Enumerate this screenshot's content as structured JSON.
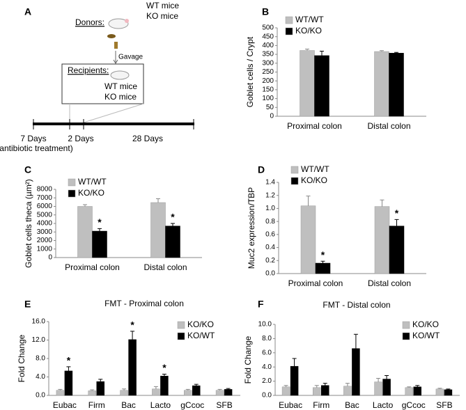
{
  "panel_a": {
    "panel_label": "A",
    "donors": "Donors:",
    "donor_groups": [
      "WT mice",
      "KO mice"
    ],
    "gavage": "Gavage",
    "recipients": "Recipients:",
    "recipient_groups": [
      "WT mice",
      "KO mice"
    ],
    "timeline": [
      "7 Days",
      "2 Days",
      "28 Days"
    ],
    "timeline_note": "(antibiotic treatment)"
  },
  "chart_data": [
    {
      "type": "bar",
      "panel_label": "B",
      "y_label": "Goblet cells / Crypt",
      "categories": [
        "Proximal colon",
        "Distal colon"
      ],
      "ylim": [
        0,
        500
      ],
      "yticks": [
        0,
        50,
        100,
        150,
        200,
        250,
        300,
        350,
        400,
        450,
        500
      ],
      "series": [
        {
          "name": "WT/WT",
          "color": "#bfbfbf",
          "values": [
            372,
            366
          ],
          "errors": [
            8,
            5
          ],
          "markers": [
            null,
            null
          ]
        },
        {
          "name": "KO/KO",
          "color": "#000000",
          "values": [
            343,
            357
          ],
          "errors": [
            25,
            4
          ],
          "markers": [
            null,
            null
          ]
        }
      ]
    },
    {
      "type": "bar",
      "panel_label": "C",
      "y_label": "Goblet cells theca (µm²)",
      "categories": [
        "Proximal colon",
        "Distal colon"
      ],
      "ylim": [
        0,
        8000
      ],
      "yticks": [
        0,
        1000,
        2000,
        3000,
        4000,
        5000,
        6000,
        7000,
        8000
      ],
      "series": [
        {
          "name": "WT/WT",
          "color": "#bfbfbf",
          "values": [
            6000,
            6450
          ],
          "errors": [
            200,
            450
          ],
          "markers": [
            null,
            null
          ]
        },
        {
          "name": "KO/KO",
          "color": "#000000",
          "values": [
            3100,
            3700
          ],
          "errors": [
            300,
            300
          ],
          "markers": [
            "*",
            "*"
          ]
        }
      ]
    },
    {
      "type": "bar",
      "panel_label": "D",
      "y_label": "Muc2 expression/TBP",
      "categories": [
        "Proximal colon",
        "Distal colon"
      ],
      "ylim": [
        0,
        1.4
      ],
      "yticks": [
        {
          "value": 0,
          "label": "0.0"
        },
        0.2,
        0.4,
        0.6,
        0.8,
        {
          "value": 1,
          "label": "1.0"
        },
        1.2,
        1.4
      ],
      "series": [
        {
          "name": "WT/WT",
          "color": "#bfbfbf",
          "values": [
            1.04,
            1.03
          ],
          "errors": [
            0.15,
            0.1
          ],
          "markers": [
            null,
            null
          ]
        },
        {
          "name": "KO/KO",
          "color": "#000000",
          "values": [
            0.16,
            0.73
          ],
          "errors": [
            0.03,
            0.1
          ],
          "markers": [
            "*",
            "*"
          ]
        }
      ]
    },
    {
      "type": "bar",
      "panel_label": "E",
      "title": "FMT - Proximal colon",
      "y_label": "Fold Change",
      "categories": [
        "Eubac",
        "Firm",
        "Bac",
        "Lacto",
        "gCcoc",
        "SFB"
      ],
      "ylim": [
        0,
        16
      ],
      "yticks": [
        {
          "value": 0,
          "label": "0.0"
        },
        {
          "value": 4,
          "label": "4.0"
        },
        {
          "value": 8,
          "label": "8.0"
        },
        {
          "value": 12,
          "label": "12.0"
        },
        {
          "value": 16,
          "label": "16.0"
        }
      ],
      "series": [
        {
          "name": "KO/KO",
          "color": "#bfbfbf",
          "values": [
            1.1,
            1.0,
            1.1,
            1.4,
            1.1,
            1.1
          ],
          "errors": [
            0.2,
            0.2,
            0.3,
            0.5,
            0.2,
            0.2
          ],
          "markers": [
            null,
            null,
            null,
            null,
            null,
            null
          ]
        },
        {
          "name": "KO/WT",
          "color": "#000000",
          "values": [
            5.3,
            3.0,
            12.1,
            4.2,
            2.1,
            1.3
          ],
          "errors": [
            0.9,
            0.5,
            1.8,
            0.4,
            0.3,
            0.2
          ],
          "markers": [
            "*",
            null,
            "*",
            "*",
            null,
            null
          ]
        }
      ]
    },
    {
      "type": "bar",
      "panel_label": "F",
      "title": "FMT - Distal colon",
      "y_label": "Fold Change",
      "categories": [
        "Eubac",
        "Firm",
        "Bac",
        "Lacto",
        "gCcoc",
        "SFB"
      ],
      "ylim": [
        0,
        10
      ],
      "yticks": [
        {
          "value": 0,
          "label": "0.0"
        },
        {
          "value": 2,
          "label": "2.0"
        },
        {
          "value": 4,
          "label": "4.0"
        },
        {
          "value": 6,
          "label": "6.0"
        },
        {
          "value": 8,
          "label": "8.0"
        },
        {
          "value": 10,
          "label": "10.0"
        }
      ],
      "series": [
        {
          "name": "KO/KO",
          "color": "#bfbfbf",
          "values": [
            1.2,
            1.1,
            1.3,
            1.9,
            1.1,
            0.9
          ],
          "errors": [
            0.2,
            0.3,
            0.4,
            0.5,
            0.1,
            0.1
          ],
          "markers": [
            null,
            null,
            null,
            null,
            null,
            null
          ]
        },
        {
          "name": "KO/WT",
          "color": "#000000",
          "values": [
            4.1,
            1.4,
            6.6,
            2.3,
            1.2,
            0.8
          ],
          "errors": [
            1.1,
            0.3,
            2.0,
            0.5,
            0.2,
            0.1
          ],
          "markers": [
            null,
            null,
            null,
            null,
            null,
            null
          ]
        }
      ]
    }
  ]
}
